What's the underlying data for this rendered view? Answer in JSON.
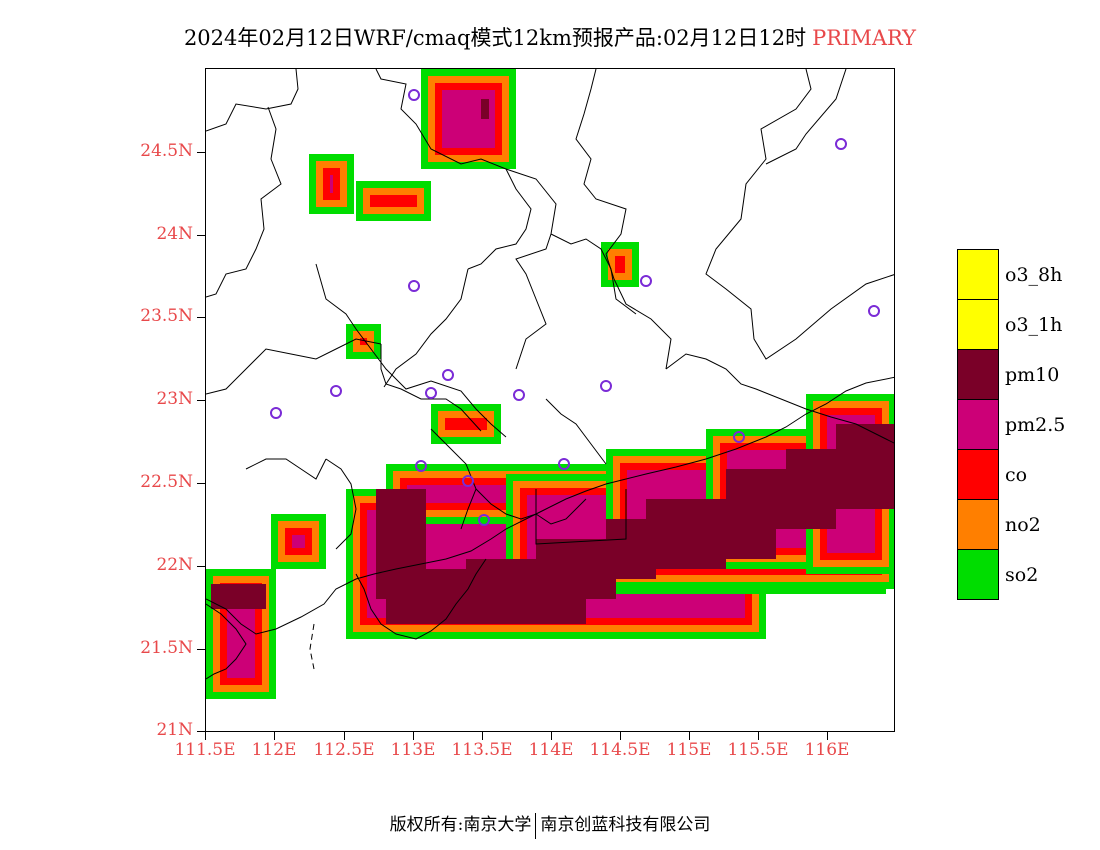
{
  "header": {
    "title": "2024年02月12日WRF/cmaq模式12km预报产品:02月12日12时",
    "tag": "PRIMARY"
  },
  "axes": {
    "y_ticks": [
      "24.5N",
      "24N",
      "23.5N",
      "23N",
      "22.5N",
      "22N",
      "21.5N",
      "21N"
    ],
    "x_ticks": [
      "111.5E",
      "112E",
      "112.5E",
      "113E",
      "113.5E",
      "114E",
      "114.5E",
      "115E",
      "115.5E",
      "116E"
    ]
  },
  "legend": {
    "items": [
      {
        "label": "o3_8h",
        "color": "#ffff00"
      },
      {
        "label": "o3_1h",
        "color": "#ffff00"
      },
      {
        "label": "pm10",
        "color": "#7a0028"
      },
      {
        "label": "pm2.5",
        "color": "#cc0077"
      },
      {
        "label": "co",
        "color": "#ff0000"
      },
      {
        "label": "no2",
        "color": "#ff7f00"
      },
      {
        "label": "so2",
        "color": "#00dd00"
      }
    ]
  },
  "footer": {
    "left": "版权所有:南京大学",
    "right": "南京创蓝科技有限公司"
  }
}
